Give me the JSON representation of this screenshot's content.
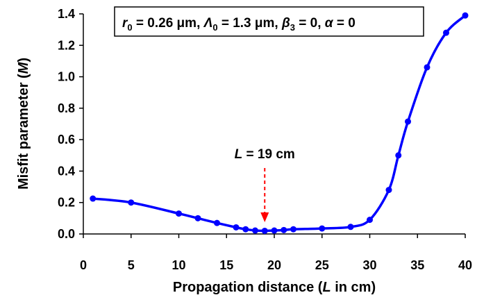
{
  "chart_data": {
    "type": "line",
    "xlabel": {
      "prefix": "Propagation distance (",
      "var": "L",
      "suffix": " in cm)"
    },
    "ylabel": {
      "prefix": "Misfit parameter (",
      "var": "M",
      "suffix": ")"
    },
    "xlim": [
      0,
      40
    ],
    "ylim": [
      0,
      1.4
    ],
    "xticks": [
      "0",
      "5",
      "10",
      "15",
      "20",
      "25",
      "30",
      "35",
      "40"
    ],
    "yticks": [
      "0.0",
      "0.2",
      "0.4",
      "0.6",
      "0.8",
      "1.0",
      "1.2",
      "1.4"
    ],
    "grid": false,
    "series": [
      {
        "color": "#0000ff",
        "x": [
          1,
          5,
          10,
          12,
          14,
          16,
          17,
          18,
          19,
          20,
          21,
          22,
          25,
          28,
          30,
          32,
          33,
          34,
          36,
          38,
          40
        ],
        "y": [
          0.225,
          0.2,
          0.13,
          0.1,
          0.07,
          0.042,
          0.03,
          0.022,
          0.02,
          0.022,
          0.025,
          0.03,
          0.035,
          0.045,
          0.09,
          0.28,
          0.5,
          0.715,
          1.06,
          1.28,
          1.39
        ]
      }
    ],
    "annotation": {
      "var": "L",
      "text": " = 19 cm",
      "x": 19,
      "arrow_color": "#ff0000"
    },
    "params_box": {
      "r_var": "r",
      "r_sub": "0",
      "r_val": " = 0.26 μm, ",
      "lam_var": "Λ",
      "lam_sub": "0",
      "lam_val": " = 1.3 μm, ",
      "beta_var": "β",
      "beta_sub": "3",
      "beta_val": " = 0, ",
      "alpha_var": "α",
      "alpha_val": " = 0"
    }
  }
}
